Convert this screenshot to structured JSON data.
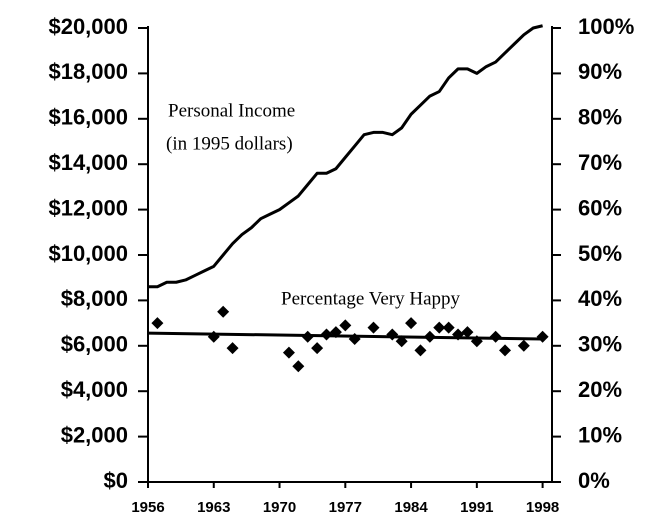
{
  "chart_data": {
    "type": "line",
    "annotations": [
      "Personal Income",
      "(in 1995 dollars)",
      "Percentage Very Happy"
    ],
    "xlim": [
      1956,
      1999
    ],
    "xticks": [
      1956,
      1963,
      1970,
      1977,
      1984,
      1991,
      1998
    ],
    "ylim": [
      0,
      20000
    ],
    "yticks": [
      {
        "value": 0,
        "label": "$0"
      },
      {
        "value": 2000,
        "label": "$2,000"
      },
      {
        "value": 4000,
        "label": "$4,000"
      },
      {
        "value": 6000,
        "label": "$6,000"
      },
      {
        "value": 8000,
        "label": "$8,000"
      },
      {
        "value": 10000,
        "label": "$10,000"
      },
      {
        "value": 12000,
        "label": "$12,000"
      },
      {
        "value": 14000,
        "label": "$14,000"
      },
      {
        "value": 16000,
        "label": "$16,000"
      },
      {
        "value": 18000,
        "label": "$18,000"
      },
      {
        "value": 20000,
        "label": "$20,000"
      }
    ],
    "y2lim": [
      0,
      100
    ],
    "y2ticks": [
      {
        "value": 0,
        "label": "0%"
      },
      {
        "value": 10,
        "label": "10%"
      },
      {
        "value": 20,
        "label": "20%"
      },
      {
        "value": 30,
        "label": "30%"
      },
      {
        "value": 40,
        "label": "40%"
      },
      {
        "value": 50,
        "label": "50%"
      },
      {
        "value": 60,
        "label": "60%"
      },
      {
        "value": 70,
        "label": "70%"
      },
      {
        "value": 80,
        "label": "80%"
      },
      {
        "value": 90,
        "label": "90%"
      },
      {
        "value": 100,
        "label": "100%"
      }
    ],
    "series": [
      {
        "type": "line",
        "color": "#000000",
        "x": [
          1956,
          1957,
          1958,
          1959,
          1960,
          1961,
          1962,
          1963,
          1964,
          1965,
          1966,
          1967,
          1968,
          1969,
          1970,
          1971,
          1972,
          1973,
          1974,
          1975,
          1976,
          1977,
          1978,
          1979,
          1980,
          1981,
          1982,
          1983,
          1984,
          1985,
          1986,
          1987,
          1988,
          1989,
          1990,
          1991,
          1992,
          1993,
          1994,
          1995,
          1996,
          1997,
          1998
        ],
        "values": [
          8600,
          8600,
          8800,
          8800,
          8900,
          9100,
          9300,
          9500,
          10000,
          10500,
          10900,
          11200,
          11600,
          11800,
          12000,
          12300,
          12600,
          13100,
          13600,
          13600,
          13800,
          14300,
          14800,
          15300,
          15400,
          15400,
          15300,
          15600,
          16200,
          16600,
          17000,
          17200,
          17800,
          18200,
          18200,
          18000,
          18300,
          18500,
          18900,
          19300,
          19700,
          20000,
          20100
        ]
      },
      {
        "type": "scatter",
        "color": "#000000",
        "axis": "y2",
        "x": [
          1957,
          1963,
          1964,
          1965,
          1971,
          1972,
          1973,
          1974,
          1975,
          1976,
          1977,
          1978,
          1980,
          1982,
          1983,
          1984,
          1985,
          1986,
          1987,
          1988,
          1989,
          1990,
          1991,
          1993,
          1994,
          1996,
          1998
        ],
        "values": [
          35,
          32,
          37.5,
          29.5,
          28.5,
          25.5,
          32,
          29.5,
          32.5,
          33,
          34.5,
          31.5,
          34,
          32.5,
          31,
          35,
          29,
          32,
          34,
          34,
          32.5,
          33,
          31,
          32,
          29,
          30,
          32
        ]
      },
      {
        "type": "line",
        "color": "#000000",
        "axis": "y2",
        "x": [
          1956,
          1998
        ],
        "values": [
          32.8,
          31.5
        ]
      }
    ]
  }
}
